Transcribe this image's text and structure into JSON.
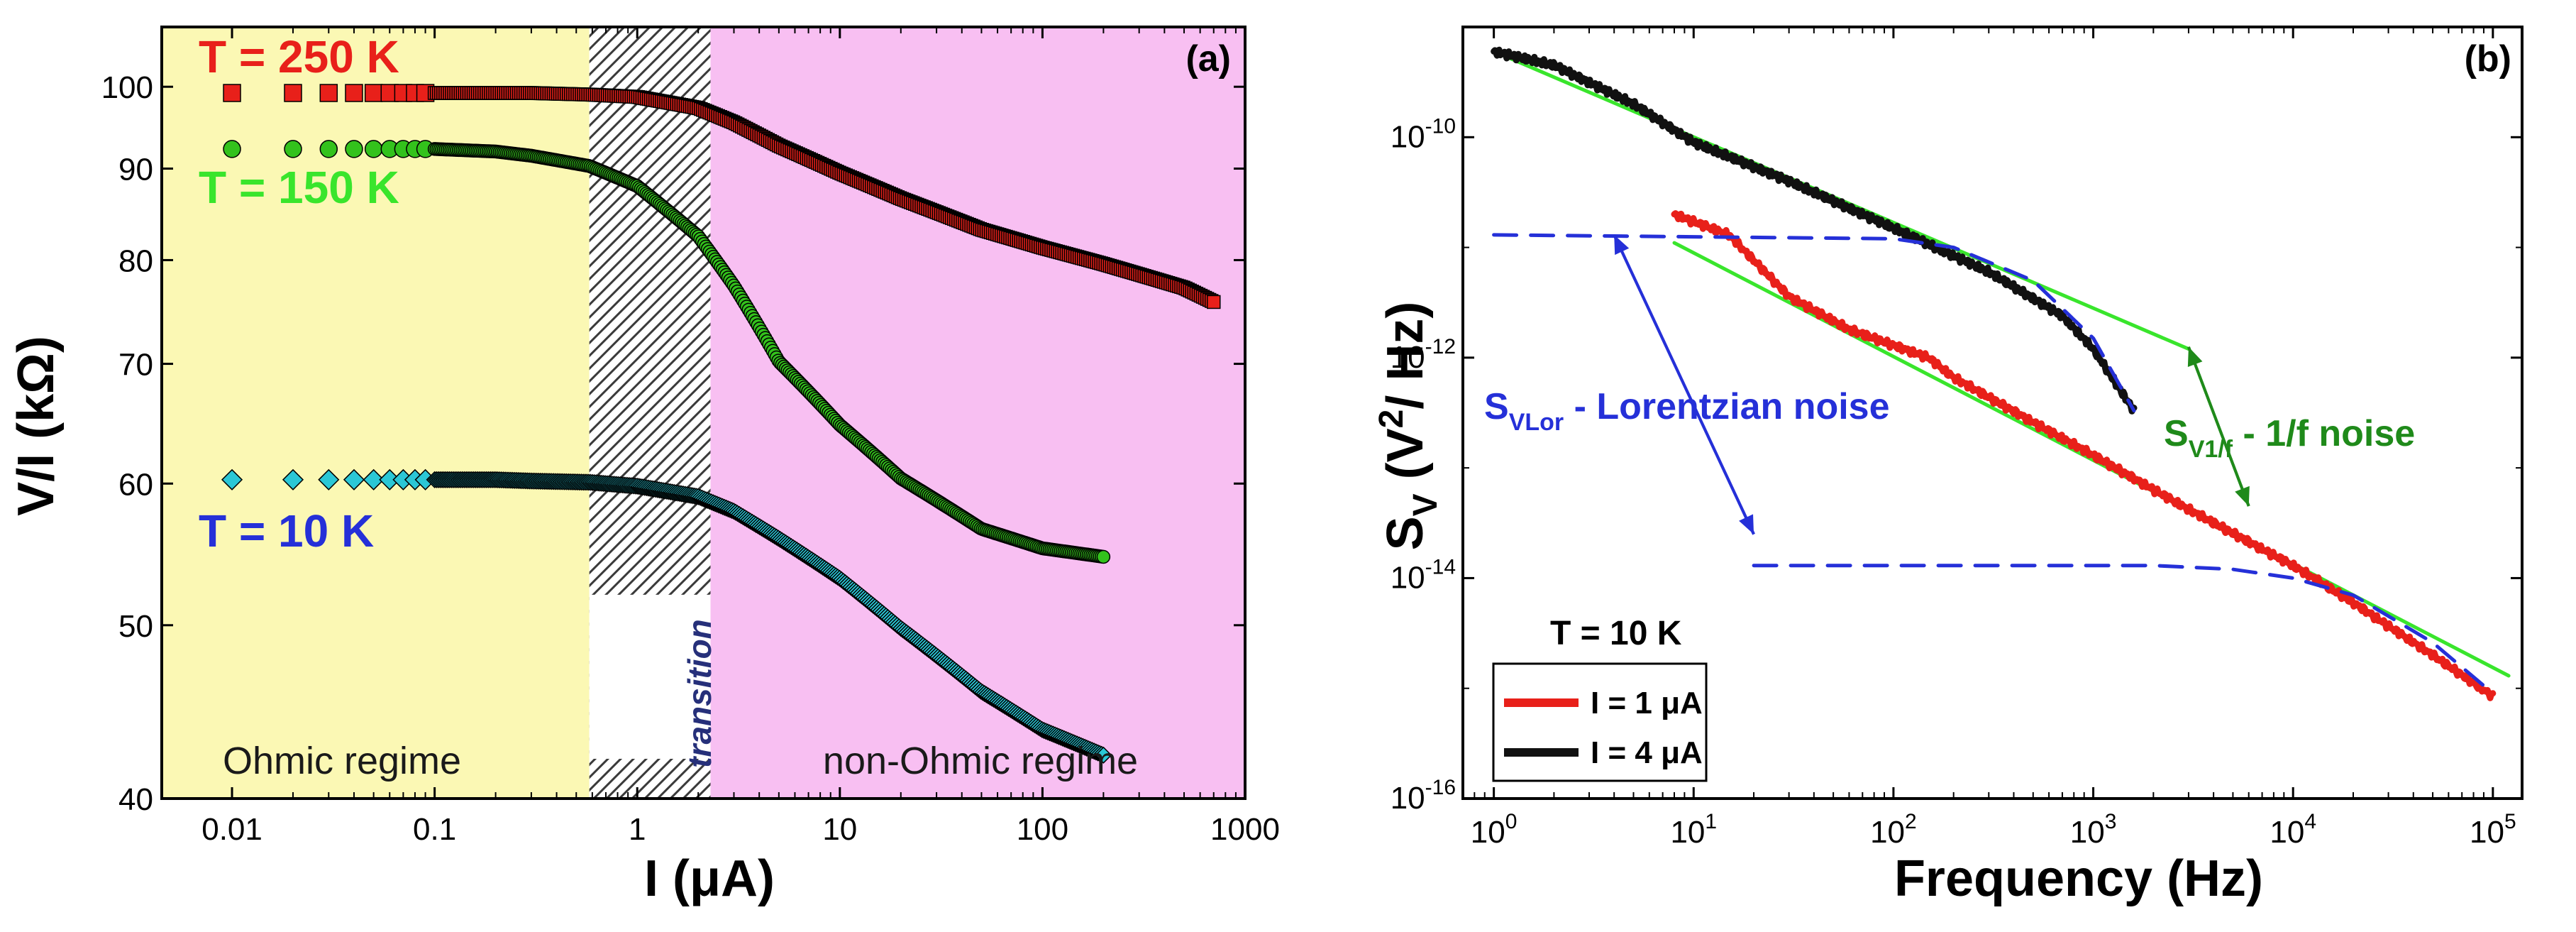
{
  "chart_data": [
    {
      "panel_label": "(a)",
      "type": "scatter",
      "xlabel": "I (μA)",
      "ylabel": "V/I (kΩ)",
      "x_scale": "log",
      "y_scale": "log",
      "xlim": [
        0.0045,
        1000
      ],
      "ylim": [
        40,
        108
      ],
      "x_ticks": [
        0.01,
        0.1,
        1,
        10,
        100,
        1000
      ],
      "x_tick_labels": [
        "0.01",
        "0.1",
        "1",
        "10",
        "100",
        "1000"
      ],
      "y_ticks": [
        40,
        50,
        60,
        70,
        80,
        90,
        100
      ],
      "y_tick_labels": [
        "40",
        "50",
        "60",
        "70",
        "80",
        "90",
        "100"
      ],
      "grid": false,
      "regions": [
        {
          "label": "Ohmic regime",
          "from": 0.0045,
          "to": 0.58,
          "color": "#fbf8b4"
        },
        {
          "label": "transition",
          "from": 0.58,
          "to": 2.3,
          "color": "#ffffff",
          "pattern": "hatch"
        },
        {
          "label": "non-Ohmic regime",
          "from": 2.3,
          "to": 1000,
          "color": "#f8bff2"
        }
      ],
      "series": [
        {
          "name": "T = 250 K",
          "marker": "square",
          "color": "#e8201a",
          "x": [
            0.01,
            0.02,
            0.03,
            0.05,
            0.1,
            0.2,
            0.3,
            0.58,
            1,
            2,
            3,
            5,
            10,
            20,
            50,
            100,
            200,
            500,
            700
          ],
          "y": [
            99.2,
            99.2,
            99.2,
            99.2,
            99.2,
            99.2,
            99.2,
            99,
            98.7,
            97.3,
            95.5,
            92.7,
            89.5,
            86.6,
            83.2,
            81.3,
            79.6,
            77.2,
            75.8
          ]
        },
        {
          "name": "T = 150 K",
          "marker": "circle",
          "color": "#33c21c",
          "x": [
            0.01,
            0.02,
            0.03,
            0.05,
            0.1,
            0.2,
            0.3,
            0.58,
            1,
            2,
            3,
            5,
            10,
            20,
            50,
            100,
            200
          ],
          "y": [
            92.3,
            92.3,
            92.3,
            92.3,
            92.3,
            92,
            91.5,
            90.3,
            88,
            82.5,
            77.4,
            70.2,
            64.7,
            60.4,
            56.6,
            55.2,
            54.6
          ]
        },
        {
          "name": "T = 10 K",
          "marker": "diamond",
          "color": "#2bc7d6",
          "x": [
            0.01,
            0.02,
            0.03,
            0.05,
            0.1,
            0.2,
            0.3,
            0.58,
            1,
            2,
            3,
            5,
            10,
            20,
            50,
            100,
            200
          ],
          "y": [
            60.3,
            60.3,
            60.3,
            60.3,
            60.3,
            60.3,
            60.2,
            60.1,
            59.8,
            59,
            57.9,
            55.9,
            53.1,
            49.8,
            45.9,
            43.7,
            42.3
          ]
        }
      ]
    },
    {
      "panel_label": "(b)",
      "type": "line",
      "xlabel": "Frequency (Hz)",
      "ylabel": "Sᵥ (V²/ Hz)",
      "x_scale": "log",
      "y_scale": "log",
      "xlim": [
        0.7,
        140000
      ],
      "ylim": [
        1e-16,
        1e-09
      ],
      "x_ticks": [
        1,
        10,
        100,
        1000,
        10000,
        100000
      ],
      "x_tick_labels": [
        "10^0",
        "10^1",
        "10^2",
        "10^3",
        "10^4",
        "10^5"
      ],
      "y_ticks": [
        1e-16,
        1e-14,
        1e-12,
        1e-10
      ],
      "y_tick_labels": [
        "10^-16",
        "10^-14",
        "10^-12",
        "10^-10"
      ],
      "grid": false,
      "legend_title": "T = 10 K",
      "legend_position": "bottom-left",
      "series": [
        {
          "name": "I = 1 μA",
          "color": "#e8201a",
          "style": "solid",
          "x": [
            8,
            15,
            30,
            60,
            150,
            200,
            500,
            1000,
            3000,
            10000,
            20000,
            50000,
            100000
          ],
          "y": [
            2e-11,
            1.3e-11,
            3.6e-12,
            1.8e-12,
            1e-12,
            6.6e-13,
            2.6e-13,
            1.3e-13,
            4.2e-14,
            1.3e-14,
            6e-15,
            2e-15,
            8.5e-16
          ]
        },
        {
          "name": "I = 4 μA",
          "color": "#111111",
          "style": "solid",
          "x": [
            1,
            2,
            5,
            10,
            30,
            100,
            300,
            700,
            1000,
            1600
          ],
          "y": [
            6e-10,
            4.5e-10,
            2e-10,
            9e-11,
            4e-11,
            1.5e-11,
            6e-12,
            2.4e-12,
            1.2e-12,
            3.3e-13
          ]
        },
        {
          "name": "S_V1/f fit (I = 4 μA)",
          "color": "#39e52c",
          "style": "solid",
          "x": [
            1,
            3000
          ],
          "y": [
            6e-10,
            1.2e-12
          ]
        },
        {
          "name": "S_V1/f fit (I = 1 μA)",
          "color": "#39e52c",
          "style": "solid",
          "x": [
            8,
            120000
          ],
          "y": [
            1.1e-11,
            1.3e-15
          ]
        },
        {
          "name": "S_VLor fit (I = 4 μA)",
          "color": "#2530d8",
          "style": "dashed",
          "x": [
            1,
            100,
            200,
            500,
            1000,
            1600
          ],
          "y": [
            1.3e-11,
            1.2e-11,
            1e-11,
            5e-12,
            1.5e-12,
            3.3e-13
          ]
        },
        {
          "name": "S_VLor fit (I = 1 μA)",
          "color": "#2530d8",
          "style": "dashed",
          "x": [
            20,
            2000,
            5000,
            10000,
            20000,
            50000,
            100000
          ],
          "y": [
            1.3e-14,
            1.3e-14,
            1.2e-14,
            1e-14,
            7e-15,
            2.6e-15,
            9e-16
          ]
        }
      ],
      "annotations": [
        {
          "label": "S_VLor - Lorentzian noise",
          "main": "S",
          "sub": "VLor",
          "rest": " - Lorentzian noise",
          "color": "#2530d8"
        },
        {
          "label": "S_V1/f - 1/f noise",
          "main": "S",
          "sub": "V1/f",
          "rest": " - 1/f noise",
          "color": "#1f8a1a"
        }
      ]
    }
  ]
}
